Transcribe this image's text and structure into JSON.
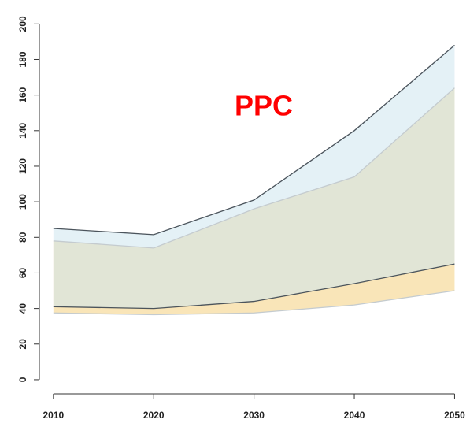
{
  "chart_data": {
    "type": "band",
    "title": "PPC",
    "title_color": "#ff0000",
    "x": [
      2010,
      2020,
      2030,
      2040,
      2050
    ],
    "xlim": [
      2008.6,
      2051.3
    ],
    "xticks": [
      2010,
      2020,
      2030,
      2040,
      2050
    ],
    "ylim": [
      -8,
      209
    ],
    "yticks": [
      0,
      20,
      40,
      60,
      80,
      100,
      120,
      140,
      160,
      180,
      200
    ],
    "grid": false,
    "series": [
      {
        "color": "#f7dca0",
        "edge": "#c4cbcf",
        "upper": [
          78,
          74,
          96,
          114,
          164
        ],
        "lower": [
          37.5,
          36.5,
          37.5,
          42,
          50
        ]
      },
      {
        "color": "#cde6ee",
        "edge": "#4b545c",
        "upper": [
          85,
          81.5,
          101,
          140,
          188
        ],
        "lower": [
          41,
          40,
          44,
          54,
          65
        ]
      }
    ]
  }
}
